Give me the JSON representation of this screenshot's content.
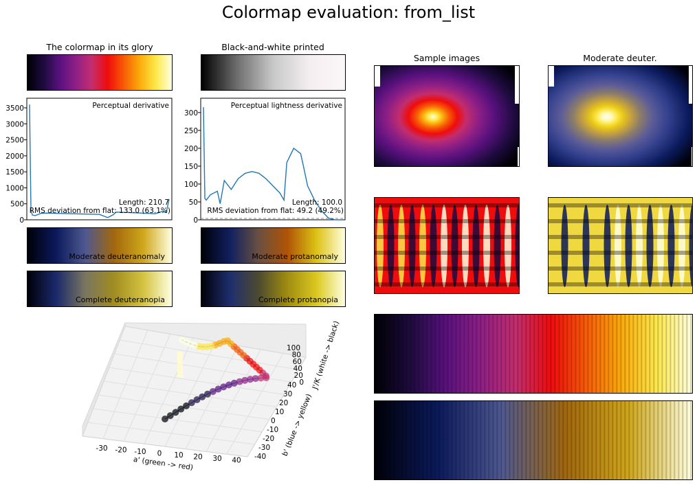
{
  "figure": {
    "title": "Colormap evaluation: from_list"
  },
  "panels": {
    "glory_title": "The colormap in its glory",
    "bw_title": "Black-and-white printed",
    "sample_title": "Sample images",
    "deuter_title": "Moderate deuter."
  },
  "colors": {
    "cmap": [
      "#000004",
      "#1d0b3e",
      "#58117d",
      "#8d1f86",
      "#c32d6e",
      "#ef0c0c",
      "#f75b06",
      "#fbab0a",
      "#fde84a",
      "#ffffe0"
    ],
    "cmap_bw": [
      "#000000",
      "#ffffff"
    ],
    "deuteranomaly": [
      "#000008",
      "#0b1a5c",
      "#4e5890",
      "#a2670d",
      "#cfa61a",
      "#ffffe0"
    ],
    "protanomaly": [
      "#000006",
      "#102060",
      "#6a5040",
      "#b05406",
      "#dcc214",
      "#ffffe0"
    ],
    "deuteranopia": [
      "#000008",
      "#1a2a6c",
      "#7a7560",
      "#a08c20",
      "#d4c240",
      "#ffffe0"
    ],
    "protanopia": [
      "#000006",
      "#1e2e6e",
      "#4e4a30",
      "#a08c10",
      "#dac820",
      "#ffffe0"
    ],
    "line": "#1f77b4"
  },
  "chart_data": [
    {
      "type": "line",
      "title": "Perceptual derivative",
      "ylim": [
        0,
        3800
      ],
      "yticks": [
        "0",
        "500",
        "1000",
        "1500",
        "2000",
        "2500",
        "3000",
        "3500"
      ],
      "x": [
        0,
        0.01,
        0.02,
        0.04,
        0.08,
        0.12,
        0.2,
        0.3,
        0.4,
        0.5,
        0.56,
        0.6,
        0.62,
        0.7,
        0.8,
        0.9,
        0.95,
        0.98,
        1.0
      ],
      "y": [
        3600,
        300,
        150,
        130,
        200,
        210,
        200,
        190,
        180,
        170,
        70,
        160,
        240,
        230,
        210,
        190,
        260,
        230,
        650
      ],
      "annotations": [
        "Length: 210.7",
        "RMS deviation from flat: 133.0 (63.1%)"
      ]
    },
    {
      "type": "line",
      "title": "Perceptual lightness derivative",
      "ylim": [
        0,
        340
      ],
      "yticks": [
        "0",
        "50",
        "100",
        "150",
        "200",
        "250",
        "300"
      ],
      "x": [
        0,
        0.01,
        0.02,
        0.05,
        0.1,
        0.12,
        0.15,
        0.2,
        0.25,
        0.3,
        0.35,
        0.4,
        0.45,
        0.5,
        0.55,
        0.58,
        0.6,
        0.65,
        0.7,
        0.72,
        0.75,
        0.8,
        0.85,
        0.9,
        0.95,
        1.0
      ],
      "y": [
        315,
        60,
        55,
        70,
        80,
        45,
        110,
        85,
        115,
        130,
        135,
        130,
        115,
        95,
        75,
        55,
        160,
        200,
        185,
        150,
        95,
        55,
        25,
        5,
        0,
        0
      ],
      "annotations": [
        "Length: 100.0",
        "RMS deviation from flat: 49.2 (49.2%)"
      ]
    },
    {
      "type": "scatter",
      "axis_labels": [
        "a' (green -> red)",
        "b' (blue -> yellow)",
        "J'/K (white -> black)"
      ],
      "x_ticks": [
        "-30",
        "-20",
        "-10",
        "0",
        "10",
        "20",
        "30",
        "40"
      ],
      "y_ticks": [
        "40",
        "30",
        "20",
        "10",
        "0",
        "-10",
        "-20",
        "-30",
        "-40"
      ],
      "z_ticks": [
        "100",
        "80",
        "60",
        "40",
        "20",
        "0"
      ]
    }
  ],
  "cvd_labels": {
    "deuteranomaly": "Moderate deuteranomaly",
    "protanomaly": "Moderate protanomaly",
    "deuteranopia": "Complete deuteranopia",
    "protanopia": "Complete protanopia"
  }
}
